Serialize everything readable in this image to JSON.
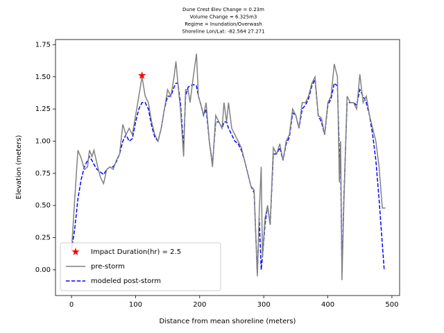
{
  "chart_data": {
    "type": "line",
    "title": [
      "Dune Crest Elev Change = 0.23m",
      "Volume Change = 6.325m3",
      "Regime = Inundation/Overwash",
      "Shoreline Lon/Lat: -82.564 27.271"
    ],
    "xlabel": "Distance from mean shoreline (meters)",
    "ylabel": "Elevation (meters)",
    "xlim": [
      -25,
      512
    ],
    "ylim": [
      -0.2,
      1.79
    ],
    "xticks": [
      0,
      100,
      200,
      300,
      400,
      500
    ],
    "yticks": [
      {
        "value": 0,
        "label": "0.00"
      },
      0.25,
      {
        "value": 0.5,
        "label": "0.50"
      },
      0.75,
      {
        "value": 1,
        "label": "1.00"
      },
      1.25,
      {
        "value": 1.5,
        "label": "1.50"
      },
      1.75
    ],
    "legend": "lower left",
    "series": [
      {
        "name": "Impact Duration(hr) = 2.5",
        "color": "#ff0000",
        "style": "marker",
        "x": [
          110
        ],
        "values": [
          1.51
        ]
      },
      {
        "name": "pre-storm",
        "color": "#808080",
        "style": "solid",
        "x": [
          0,
          5,
          10,
          15,
          20,
          25,
          28,
          32,
          35,
          40,
          45,
          50,
          55,
          60,
          65,
          70,
          75,
          80,
          85,
          90,
          95,
          100,
          105,
          110,
          115,
          120,
          125,
          130,
          135,
          140,
          145,
          150,
          155,
          160,
          163,
          166,
          170,
          175,
          178,
          182,
          185,
          190,
          195,
          198,
          202,
          206,
          210,
          215,
          220,
          225,
          230,
          235,
          238,
          242,
          245,
          250,
          255,
          260,
          265,
          270,
          275,
          280,
          285,
          290,
          293,
          296,
          298,
          302,
          306,
          310,
          315,
          320,
          325,
          330,
          335,
          340,
          345,
          350,
          355,
          360,
          365,
          370,
          375,
          380,
          385,
          390,
          395,
          400,
          405,
          410,
          415,
          418,
          420,
          422,
          425,
          430,
          435,
          440,
          445,
          450,
          455,
          460,
          465,
          470,
          475,
          480,
          485,
          490
        ],
        "values": [
          0.15,
          0.55,
          0.93,
          0.87,
          0.78,
          0.8,
          0.93,
          0.88,
          0.93,
          0.82,
          0.72,
          0.67,
          0.78,
          0.8,
          0.78,
          0.85,
          0.9,
          1.13,
          1.05,
          1.1,
          1.05,
          1.2,
          1.35,
          1.5,
          1.35,
          1.3,
          1.15,
          1.05,
          1.0,
          1.1,
          1.25,
          1.4,
          1.35,
          1.5,
          1.62,
          1.45,
          1.25,
          0.88,
          1.4,
          1.4,
          1.3,
          1.5,
          1.68,
          1.35,
          1.28,
          1.2,
          1.3,
          1.0,
          0.8,
          1.2,
          1.15,
          1.1,
          1.3,
          1.15,
          1.3,
          1.1,
          1.05,
          1.0,
          0.95,
          0.85,
          0.75,
          0.65,
          0.62,
          -0.05,
          0.45,
          0.8,
          0.1,
          0.4,
          0.5,
          0.35,
          0.95,
          0.9,
          0.98,
          0.85,
          1.0,
          1.05,
          1.25,
          1.2,
          1.1,
          1.3,
          1.3,
          1.35,
          1.45,
          1.5,
          1.2,
          1.18,
          1.05,
          1.3,
          1.35,
          1.6,
          1.5,
          0.68,
          1.0,
          -0.08,
          0.5,
          1.35,
          1.3,
          1.3,
          1.25,
          1.52,
          1.3,
          1.35,
          1.2,
          1.1,
          1.0,
          0.8,
          0.48,
          0.48
        ]
      },
      {
        "name": "modeled post-storm",
        "color": "#0000ff",
        "style": "dashed",
        "x": [
          0,
          5,
          10,
          15,
          20,
          25,
          28,
          32,
          35,
          40,
          45,
          50,
          55,
          60,
          65,
          70,
          75,
          80,
          85,
          90,
          95,
          100,
          105,
          110,
          115,
          120,
          125,
          130,
          135,
          140,
          145,
          150,
          155,
          160,
          163,
          166,
          170,
          175,
          178,
          182,
          185,
          190,
          195,
          198,
          202,
          206,
          210,
          215,
          220,
          225,
          230,
          235,
          238,
          242,
          245,
          250,
          255,
          260,
          265,
          270,
          275,
          280,
          285,
          290,
          293,
          296,
          298,
          302,
          306,
          310,
          315,
          320,
          325,
          330,
          335,
          340,
          345,
          350,
          355,
          360,
          365,
          370,
          375,
          380,
          385,
          390,
          395,
          400,
          405,
          410,
          415,
          418,
          420,
          422,
          425,
          430,
          435,
          440,
          445,
          450,
          455,
          460,
          465,
          470,
          475,
          480,
          485,
          488
        ],
        "values": [
          0.15,
          0.32,
          0.55,
          0.7,
          0.8,
          0.85,
          0.88,
          0.85,
          0.82,
          0.78,
          0.76,
          0.74,
          0.78,
          0.8,
          0.8,
          0.84,
          0.9,
          1.0,
          1.05,
          1.0,
          1.02,
          1.15,
          1.25,
          1.3,
          1.3,
          1.25,
          1.12,
          1.03,
          1.0,
          1.1,
          1.25,
          1.35,
          1.35,
          1.42,
          1.45,
          1.45,
          1.3,
          0.95,
          1.35,
          1.42,
          1.43,
          1.44,
          1.43,
          1.35,
          1.28,
          1.2,
          1.25,
          1.0,
          0.82,
          1.15,
          1.15,
          1.1,
          1.15,
          1.15,
          1.1,
          1.05,
          1.0,
          0.98,
          0.93,
          0.85,
          0.75,
          0.65,
          0.6,
          -0.03,
          0.4,
          0.0,
          0.1,
          0.35,
          0.5,
          0.35,
          0.9,
          0.9,
          0.95,
          0.85,
          0.98,
          1.03,
          1.22,
          1.2,
          1.1,
          1.25,
          1.28,
          1.33,
          1.43,
          1.48,
          1.2,
          1.15,
          1.05,
          1.28,
          1.33,
          1.45,
          1.43,
          0.9,
          0.8,
          0.0,
          0.55,
          1.3,
          1.3,
          1.3,
          1.28,
          1.4,
          1.35,
          1.3,
          1.2,
          1.05,
          0.85,
          0.55,
          0.2,
          0.0
        ]
      }
    ]
  }
}
